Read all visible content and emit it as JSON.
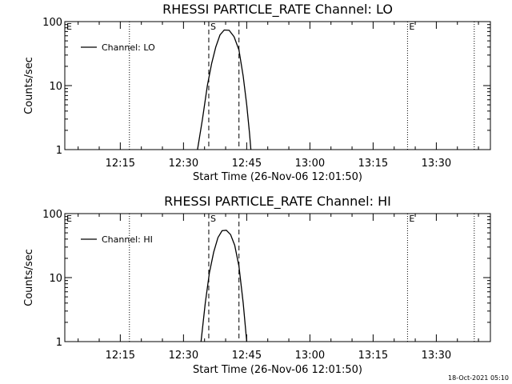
{
  "chart_data": [
    {
      "type": "line",
      "title": "RHESSI PARTICLE_RATE Channel: LO",
      "xlabel": "Start Time (26-Nov-06 12:01:50)",
      "ylabel": "Counts/sec",
      "yscale": "log",
      "ylim": [
        1,
        100
      ],
      "y_ticks": [
        "1",
        "10",
        "100"
      ],
      "x_tick_labels": [
        "12:15",
        "12:30",
        "12:45",
        "13:00",
        "13:15",
        "13:30"
      ],
      "legend": "top-left",
      "series": [
        {
          "name": "Channel: LO",
          "color": "#000000",
          "points": [
            [
              "12:33:20",
              1.0
            ],
            [
              "12:34:30",
              3.0
            ],
            [
              "12:35:40",
              10.0
            ],
            [
              "12:36:40",
              22.0
            ],
            [
              "12:37:40",
              40.0
            ],
            [
              "12:38:40",
              62.0
            ],
            [
              "12:39:40",
              74.0
            ],
            [
              "12:40:50",
              73.0
            ],
            [
              "12:42:00",
              58.0
            ],
            [
              "12:43:10",
              36.0
            ],
            [
              "12:44:10",
              14.0
            ],
            [
              "12:45:00",
              5.0
            ],
            [
              "12:45:40",
              1.8
            ],
            [
              "12:46:00",
              1.0
            ]
          ]
        }
      ],
      "markers": [
        {
          "label": "E",
          "time": "12:01:50",
          "style": "dotted"
        },
        {
          "label": "",
          "time": "12:17:10",
          "style": "dotted"
        },
        {
          "label": "S",
          "time": "12:36:00",
          "style": "dashed"
        },
        {
          "label": "",
          "time": "12:43:10",
          "style": "dashed"
        },
        {
          "label": "E",
          "time": "13:23:10",
          "style": "dotted"
        },
        {
          "label": "",
          "time": "13:39:00",
          "style": "dotted"
        }
      ]
    },
    {
      "type": "line",
      "title": "RHESSI PARTICLE_RATE Channel: HI",
      "xlabel": "Start Time (26-Nov-06 12:01:50)",
      "ylabel": "Counts/sec",
      "yscale": "log",
      "ylim": [
        1,
        100
      ],
      "y_ticks": [
        "1",
        "10",
        "100"
      ],
      "x_tick_labels": [
        "12:15",
        "12:30",
        "12:45",
        "13:00",
        "13:15",
        "13:30"
      ],
      "legend": "top-left",
      "series": [
        {
          "name": "Channel: HI",
          "color": "#000000",
          "points": [
            [
              "12:34:10",
              1.0
            ],
            [
              "12:35:10",
              4.0
            ],
            [
              "12:36:10",
              12.0
            ],
            [
              "12:37:10",
              25.0
            ],
            [
              "12:38:10",
              42.0
            ],
            [
              "12:39:10",
              54.0
            ],
            [
              "12:40:10",
              55.0
            ],
            [
              "12:41:10",
              47.0
            ],
            [
              "12:42:10",
              32.0
            ],
            [
              "12:43:10",
              15.0
            ],
            [
              "12:44:10",
              4.0
            ],
            [
              "12:45:00",
              1.0
            ]
          ]
        }
      ],
      "markers": [
        {
          "label": "E",
          "time": "12:01:50",
          "style": "dotted"
        },
        {
          "label": "",
          "time": "12:17:10",
          "style": "dotted"
        },
        {
          "label": "S",
          "time": "12:36:00",
          "style": "dashed"
        },
        {
          "label": "",
          "time": "12:43:10",
          "style": "dashed"
        },
        {
          "label": "E",
          "time": "13:23:10",
          "style": "dotted"
        },
        {
          "label": "",
          "time": "13:39:00",
          "style": "dotted"
        }
      ]
    }
  ],
  "footer": {
    "timestamp": "18-Oct-2021 05:10"
  }
}
